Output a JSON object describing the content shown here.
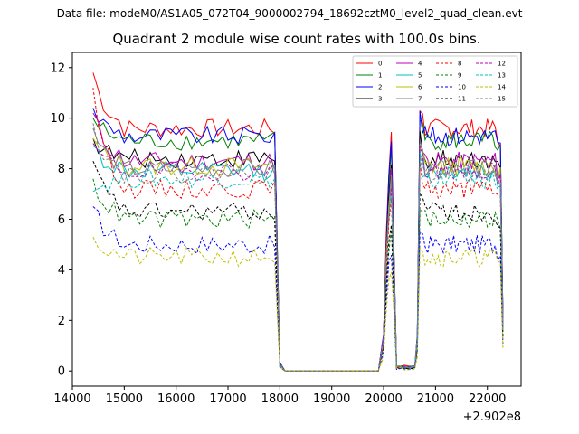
{
  "suptitle": "Data file: modeM0/AS1A05_072T04_9000002794_18692cztM0_level2_quad_clean.evt",
  "chart_data": {
    "type": "line",
    "title": "Quadrant 2 module wise count rates with 100.0s bins.",
    "xlabel": "",
    "ylabel": "",
    "x_offset_label": "+2.902e8",
    "xlim": [
      14000,
      22650
    ],
    "ylim": [
      -0.6,
      12.6
    ],
    "x_ticks": [
      14000,
      15000,
      16000,
      17000,
      18000,
      19000,
      20000,
      21000,
      22000
    ],
    "y_ticks": [
      0,
      2,
      4,
      6,
      8,
      10,
      12
    ],
    "x_tick_labels": [
      "14000",
      "15000",
      "16000",
      "17000",
      "18000",
      "19000",
      "20000",
      "21000",
      "22000"
    ],
    "y_tick_labels": [
      "0",
      "2",
      "4",
      "6",
      "8",
      "10",
      "12"
    ],
    "legend_position": "top-right",
    "time_segments": [
      {
        "start": 14400,
        "end": 18000,
        "step": 100
      },
      {
        "start": 18000,
        "end": 19950,
        "step": 100
      },
      {
        "start": 20000,
        "end": 20350,
        "step": 50
      },
      {
        "start": 20400,
        "end": 20600,
        "step": 100
      },
      {
        "start": 20650,
        "end": 22300,
        "step": 50
      }
    ],
    "series": [
      {
        "name": "0",
        "color": "#ff0000",
        "dash": "solid",
        "level": 9.6,
        "start": 11.8
      },
      {
        "name": "1",
        "color": "#008000",
        "dash": "solid",
        "level": 9.1,
        "start": 10.0
      },
      {
        "name": "2",
        "color": "#0000ff",
        "dash": "solid",
        "level": 9.3,
        "start": 10.4
      },
      {
        "name": "3",
        "color": "#000000",
        "dash": "solid",
        "level": 8.4,
        "start": 9.2
      },
      {
        "name": "4",
        "color": "#bf00bf",
        "dash": "solid",
        "level": 8.3,
        "start": 10.2
      },
      {
        "name": "5",
        "color": "#00bfbf",
        "dash": "solid",
        "level": 7.9,
        "start": 8.9
      },
      {
        "name": "6",
        "color": "#bfbf00",
        "dash": "solid",
        "level": 8.1,
        "start": 9.2
      },
      {
        "name": "7",
        "color": "#808080",
        "dash": "solid",
        "level": 8.0,
        "start": 9.6
      },
      {
        "name": "8",
        "color": "#ff0000",
        "dash": "dashed",
        "level": 7.2,
        "start": 11.2
      },
      {
        "name": "9",
        "color": "#008000",
        "dash": "dashed",
        "level": 6.0,
        "start": 7.6
      },
      {
        "name": "10",
        "color": "#0000ff",
        "dash": "dashed",
        "level": 5.0,
        "start": 6.5
      },
      {
        "name": "11",
        "color": "#000000",
        "dash": "dashed",
        "level": 6.3,
        "start": 8.3
      },
      {
        "name": "12",
        "color": "#bf00bf",
        "dash": "dashed",
        "level": 7.9,
        "start": 9.0
      },
      {
        "name": "13",
        "color": "#00bfbf",
        "dash": "dashed",
        "level": 7.6,
        "start": 7.1
      },
      {
        "name": "14",
        "color": "#bfbf00",
        "dash": "dashed",
        "level": 4.5,
        "start": 5.3
      },
      {
        "name": "15",
        "color": "#808080",
        "dash": "dashed",
        "level": 7.8,
        "start": 9.8
      }
    ]
  }
}
